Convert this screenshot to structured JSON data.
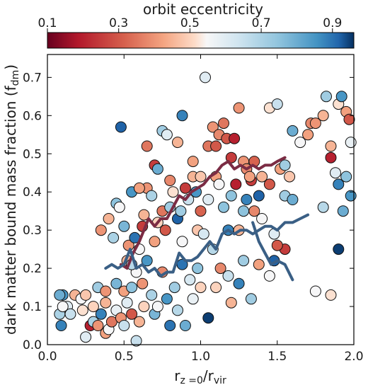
{
  "chart_data": {
    "type": "scatter",
    "colorbar": {
      "label": "orbit eccentricity",
      "range": [
        0.1,
        0.96
      ],
      "ticks": [
        0.1,
        0.3,
        0.5,
        0.7,
        0.9
      ],
      "tick_labels": [
        "0.1",
        "0.3",
        "0.5",
        "0.7",
        "0.9"
      ],
      "colormap": [
        [
          0.0,
          "#67001f"
        ],
        [
          0.1,
          "#b2182b"
        ],
        [
          0.25,
          "#d6604d"
        ],
        [
          0.38,
          "#f4a582"
        ],
        [
          0.48,
          "#fddbc7"
        ],
        [
          0.52,
          "#f7f7f7"
        ],
        [
          0.62,
          "#d1e5f0"
        ],
        [
          0.75,
          "#92c5de"
        ],
        [
          0.88,
          "#4393c3"
        ],
        [
          0.95,
          "#2166ac"
        ],
        [
          1.0,
          "#053061"
        ]
      ]
    },
    "xlabel": {
      "base": "r",
      "sub1": "z =0",
      "sep": "/r",
      "sub2": "vir"
    },
    "ylabel": {
      "base": "dark matter bound mass fraction (f",
      "sub": "dm",
      "end": ")"
    },
    "xlim": [
      0.0,
      2.0
    ],
    "ylim": [
      0.0,
      0.76
    ],
    "xticks": [
      0.0,
      0.5,
      1.0,
      1.5,
      2.0
    ],
    "xtick_labels": [
      "0.0",
      "0.5",
      "1.0",
      "1.5",
      "2.0"
    ],
    "yticks": [
      0.0,
      0.1,
      0.2,
      0.3,
      0.4,
      0.5,
      0.6,
      0.7
    ],
    "ytick_labels": [
      "0.0",
      "0.1",
      "0.2",
      "0.3",
      "0.4",
      "0.5",
      "0.6",
      "0.7"
    ],
    "points": [
      [
        0.1,
        0.13,
        0.85
      ],
      [
        0.13,
        0.1,
        0.6
      ],
      [
        0.08,
        0.08,
        0.7
      ],
      [
        0.09,
        0.05,
        0.88
      ],
      [
        0.15,
        0.08,
        0.65
      ],
      [
        0.18,
        0.13,
        0.45
      ],
      [
        0.22,
        0.12,
        0.55
      ],
      [
        0.25,
        0.13,
        0.48
      ],
      [
        0.23,
        0.09,
        0.52
      ],
      [
        0.25,
        0.02,
        0.6
      ],
      [
        0.28,
        0.05,
        0.2
      ],
      [
        0.3,
        0.1,
        0.5
      ],
      [
        0.3,
        0.06,
        0.7
      ],
      [
        0.33,
        0.05,
        0.4
      ],
      [
        0.35,
        0.08,
        0.88
      ],
      [
        0.38,
        0.03,
        0.42
      ],
      [
        0.38,
        0.11,
        0.45
      ],
      [
        0.4,
        0.04,
        0.55
      ],
      [
        0.42,
        0.06,
        0.35
      ],
      [
        0.45,
        0.09,
        0.58
      ],
      [
        0.48,
        0.07,
        0.4
      ],
      [
        0.5,
        0.05,
        0.65
      ],
      [
        0.52,
        0.11,
        0.6
      ],
      [
        0.55,
        0.08,
        0.3
      ],
      [
        0.58,
        0.01,
        0.65
      ],
      [
        0.6,
        0.06,
        0.45
      ],
      [
        0.63,
        0.1,
        0.5
      ],
      [
        0.33,
        0.15,
        0.72
      ],
      [
        0.38,
        0.14,
        0.4
      ],
      [
        0.45,
        0.16,
        0.78
      ],
      [
        0.5,
        0.14,
        0.42
      ],
      [
        0.55,
        0.15,
        0.75
      ],
      [
        0.58,
        0.19,
        0.55
      ],
      [
        0.62,
        0.16,
        0.4
      ],
      [
        0.65,
        0.22,
        0.85
      ],
      [
        0.68,
        0.13,
        0.7
      ],
      [
        0.7,
        0.08,
        0.78
      ],
      [
        0.72,
        0.1,
        0.55
      ],
      [
        0.75,
        0.19,
        0.38
      ],
      [
        0.78,
        0.12,
        0.85
      ],
      [
        0.8,
        0.05,
        0.9
      ],
      [
        0.83,
        0.15,
        0.72
      ],
      [
        0.85,
        0.09,
        0.68
      ],
      [
        0.88,
        0.21,
        0.9
      ],
      [
        0.9,
        0.05,
        0.8
      ],
      [
        0.93,
        0.17,
        0.62
      ],
      [
        0.95,
        0.12,
        0.58
      ],
      [
        0.98,
        0.2,
        0.75
      ],
      [
        1.0,
        0.15,
        0.5
      ],
      [
        1.05,
        0.07,
        0.95
      ],
      [
        1.1,
        0.15,
        0.5
      ],
      [
        1.13,
        0.2,
        0.38
      ],
      [
        1.18,
        0.18,
        0.65
      ],
      [
        1.2,
        0.11,
        0.45
      ],
      [
        1.25,
        0.16,
        0.88
      ],
      [
        1.28,
        0.22,
        0.72
      ],
      [
        1.33,
        0.12,
        0.72
      ],
      [
        1.38,
        0.21,
        0.42
      ],
      [
        1.45,
        0.18,
        0.55
      ],
      [
        1.48,
        0.22,
        0.92
      ],
      [
        1.55,
        0.25,
        0.25
      ],
      [
        0.35,
        0.3,
        0.4
      ],
      [
        0.4,
        0.33,
        0.45
      ],
      [
        0.43,
        0.28,
        0.7
      ],
      [
        0.45,
        0.37,
        0.75
      ],
      [
        0.47,
        0.36,
        0.55
      ],
      [
        0.5,
        0.31,
        0.78
      ],
      [
        0.52,
        0.22,
        0.45
      ],
      [
        0.53,
        0.26,
        0.4
      ],
      [
        0.55,
        0.21,
        0.68
      ],
      [
        0.57,
        0.28,
        0.9
      ],
      [
        0.6,
        0.25,
        0.55
      ],
      [
        0.62,
        0.31,
        0.25
      ],
      [
        0.63,
        0.34,
        0.45
      ],
      [
        0.65,
        0.41,
        0.4
      ],
      [
        0.68,
        0.39,
        0.7
      ],
      [
        0.7,
        0.27,
        0.42
      ],
      [
        0.72,
        0.32,
        0.5
      ],
      [
        0.75,
        0.35,
        0.35
      ],
      [
        0.77,
        0.3,
        0.3
      ],
      [
        0.8,
        0.36,
        0.72
      ],
      [
        0.82,
        0.4,
        0.52
      ],
      [
        0.85,
        0.33,
        0.92
      ],
      [
        0.87,
        0.35,
        0.72
      ],
      [
        0.88,
        0.27,
        0.55
      ],
      [
        0.9,
        0.41,
        0.25
      ],
      [
        0.92,
        0.38,
        0.65
      ],
      [
        0.95,
        0.44,
        0.45
      ],
      [
        0.97,
        0.4,
        0.85
      ],
      [
        0.98,
        0.3,
        0.48
      ],
      [
        1.0,
        0.35,
        0.32
      ],
      [
        1.02,
        0.29,
        0.62
      ],
      [
        1.05,
        0.38,
        0.6
      ],
      [
        1.08,
        0.25,
        0.68
      ],
      [
        1.1,
        0.44,
        0.42
      ],
      [
        1.12,
        0.42,
        0.55
      ],
      [
        1.15,
        0.36,
        0.75
      ],
      [
        1.18,
        0.3,
        0.88
      ],
      [
        1.2,
        0.39,
        0.75
      ],
      [
        1.23,
        0.42,
        0.2
      ],
      [
        1.25,
        0.3,
        0.45
      ],
      [
        1.28,
        0.35,
        0.75
      ],
      [
        1.3,
        0.38,
        0.88
      ],
      [
        1.33,
        0.43,
        0.25
      ],
      [
        1.35,
        0.35,
        0.38
      ],
      [
        1.38,
        0.39,
        0.92
      ],
      [
        1.4,
        0.33,
        0.55
      ],
      [
        1.45,
        0.42,
        0.3
      ],
      [
        1.48,
        0.29,
        0.6
      ],
      [
        1.5,
        0.26,
        0.3
      ],
      [
        1.55,
        0.39,
        0.72
      ],
      [
        1.6,
        0.38,
        0.8
      ],
      [
        0.48,
        0.57,
        0.92
      ],
      [
        0.55,
        0.4,
        0.85
      ],
      [
        0.6,
        0.41,
        0.42
      ],
      [
        0.65,
        0.52,
        0.35
      ],
      [
        0.7,
        0.47,
        0.25
      ],
      [
        0.72,
        0.46,
        0.8
      ],
      [
        0.75,
        0.56,
        0.72
      ],
      [
        0.78,
        0.55,
        0.6
      ],
      [
        0.8,
        0.43,
        0.38
      ],
      [
        0.85,
        0.53,
        0.45
      ],
      [
        0.88,
        0.6,
        0.88
      ],
      [
        0.95,
        0.48,
        0.42
      ],
      [
        1.0,
        0.44,
        0.48
      ],
      [
        1.03,
        0.7,
        0.6
      ],
      [
        1.05,
        0.52,
        0.35
      ],
      [
        1.08,
        0.57,
        0.4
      ],
      [
        1.1,
        0.52,
        0.3
      ],
      [
        1.12,
        0.55,
        0.38
      ],
      [
        1.15,
        0.58,
        0.35
      ],
      [
        1.17,
        0.54,
        0.3
      ],
      [
        1.2,
        0.49,
        0.25
      ],
      [
        1.22,
        0.54,
        0.2
      ],
      [
        1.25,
        0.62,
        0.4
      ],
      [
        1.28,
        0.48,
        0.4
      ],
      [
        1.3,
        0.46,
        0.38
      ],
      [
        1.32,
        0.44,
        0.42
      ],
      [
        1.35,
        0.48,
        0.32
      ],
      [
        1.4,
        0.44,
        0.45
      ],
      [
        1.45,
        0.62,
        0.52
      ],
      [
        1.5,
        0.63,
        0.65
      ],
      [
        1.52,
        0.46,
        0.42
      ],
      [
        1.55,
        0.47,
        0.72
      ],
      [
        1.58,
        0.44,
        0.48
      ],
      [
        1.6,
        0.56,
        0.8
      ],
      [
        1.65,
        0.53,
        0.55
      ],
      [
        1.7,
        0.55,
        0.42
      ],
      [
        1.72,
        0.58,
        0.38
      ],
      [
        1.75,
        0.58,
        0.4
      ],
      [
        1.8,
        0.6,
        0.45
      ],
      [
        1.82,
        0.65,
        0.72
      ],
      [
        1.85,
        0.49,
        0.2
      ],
      [
        1.88,
        0.45,
        0.6
      ],
      [
        1.9,
        0.63,
        0.52
      ],
      [
        1.92,
        0.65,
        0.85
      ],
      [
        1.95,
        0.61,
        0.42
      ],
      [
        1.97,
        0.59,
        0.3
      ],
      [
        1.98,
        0.53,
        0.58
      ],
      [
        1.85,
        0.52,
        0.45
      ],
      [
        1.9,
        0.42,
        0.88
      ],
      [
        1.95,
        0.44,
        0.75
      ],
      [
        1.98,
        0.39,
        0.85
      ],
      [
        1.93,
        0.35,
        0.8
      ],
      [
        1.9,
        0.25,
        0.95
      ],
      [
        1.8,
        0.36,
        0.68
      ],
      [
        1.75,
        0.14,
        0.55
      ],
      [
        1.85,
        0.13,
        0.52
      ],
      [
        0.08,
        0.13,
        0.8
      ],
      [
        0.1,
        0.1,
        0.55
      ]
    ],
    "lines": [
      {
        "color": "#7b2c44",
        "x": [
          0.48,
          0.52,
          0.56,
          0.6,
          0.63,
          0.66,
          0.7,
          0.74,
          0.78,
          0.82,
          0.86,
          0.9,
          0.94,
          0.98,
          1.02,
          1.06,
          1.1,
          1.14,
          1.18,
          1.22,
          1.26,
          1.3,
          1.34,
          1.38,
          1.42,
          1.46,
          1.5,
          1.55
        ],
        "y": [
          0.21,
          0.2,
          0.24,
          0.27,
          0.3,
          0.33,
          0.31,
          0.33,
          0.33,
          0.36,
          0.39,
          0.38,
          0.4,
          0.41,
          0.42,
          0.44,
          0.45,
          0.47,
          0.48,
          0.46,
          0.47,
          0.46,
          0.47,
          0.46,
          0.47,
          0.47,
          0.48,
          0.49
        ]
      },
      {
        "color": "#3a5f85",
        "x": [
          0.38,
          0.42,
          0.46,
          0.5,
          0.54,
          0.58,
          0.62,
          0.66,
          0.7,
          0.74,
          0.78,
          0.82,
          0.86,
          0.9,
          0.94,
          0.98,
          1.02,
          1.06,
          1.1,
          1.14,
          1.18,
          1.22,
          1.26,
          1.3,
          1.34,
          1.38,
          1.42,
          1.46,
          1.5,
          1.55,
          1.6,
          1.65,
          1.7
        ],
        "y": [
          0.2,
          0.21,
          0.2,
          0.21,
          0.25,
          0.2,
          0.21,
          0.19,
          0.2,
          0.18,
          0.19,
          0.19,
          0.24,
          0.22,
          0.22,
          0.23,
          0.25,
          0.27,
          0.25,
          0.29,
          0.3,
          0.29,
          0.3,
          0.3,
          0.29,
          0.3,
          0.31,
          0.31,
          0.3,
          0.32,
          0.32,
          0.33,
          0.34
        ]
      },
      {
        "color": "#3a5f85",
        "x": [
          1.34,
          1.38,
          1.42,
          1.46,
          1.5,
          1.55,
          1.6
        ],
        "y": [
          0.32,
          0.27,
          0.24,
          0.21,
          0.22,
          0.21,
          0.17
        ]
      }
    ]
  }
}
